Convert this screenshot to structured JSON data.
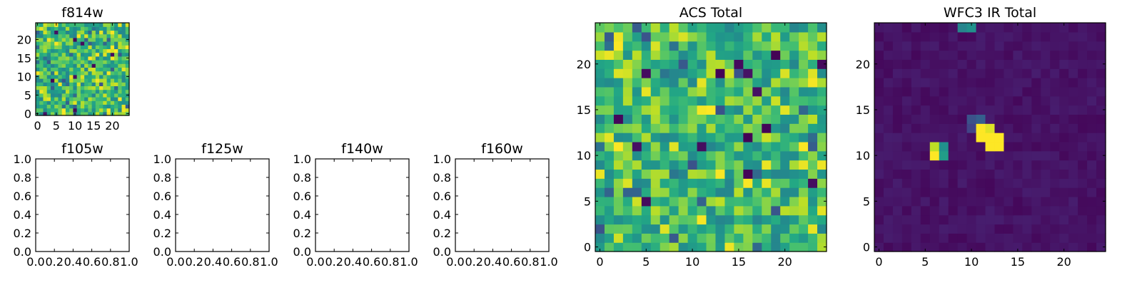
{
  "chart_data": [
    {
      "type": "heatmap",
      "title": "f814w",
      "xlabel": "",
      "ylabel": "",
      "xlim": [
        -0.5,
        24.5
      ],
      "ylim": [
        -0.5,
        24.5
      ],
      "xticks": [
        0,
        5,
        10,
        15,
        20
      ],
      "xtick_labels": [
        "0",
        "5",
        "10",
        "15",
        "20"
      ],
      "yticks": [
        0,
        5,
        10,
        15,
        20
      ],
      "ytick_labels": [
        "0",
        "5",
        "10",
        "15",
        "20"
      ],
      "colormap": "viridis",
      "grid": false,
      "cols": 25,
      "rows": 25,
      "pattern": "noise",
      "seed": 814
    },
    {
      "type": "empty",
      "title": "f105w",
      "xlim": [
        0,
        1
      ],
      "ylim": [
        0,
        1
      ],
      "xticks": [
        0,
        0.2,
        0.4,
        0.6,
        0.8,
        1.0
      ],
      "xtick_labels": [
        "0.0",
        "0.2",
        "0.4",
        "0.6",
        "0.8",
        "1.0"
      ],
      "yticks": [
        0,
        0.2,
        0.4,
        0.6,
        0.8,
        1.0
      ],
      "ytick_labels": [
        "0.0",
        "0.2",
        "0.4",
        "0.6",
        "0.8",
        "1.0"
      ]
    },
    {
      "type": "empty",
      "title": "f125w",
      "xlim": [
        0,
        1
      ],
      "ylim": [
        0,
        1
      ],
      "xticks": [
        0,
        0.2,
        0.4,
        0.6,
        0.8,
        1.0
      ],
      "xtick_labels": [
        "0.0",
        "0.2",
        "0.4",
        "0.6",
        "0.8",
        "1.0"
      ],
      "yticks": [
        0,
        0.2,
        0.4,
        0.6,
        0.8,
        1.0
      ],
      "ytick_labels": [
        "0.0",
        "0.2",
        "0.4",
        "0.6",
        "0.8",
        "1.0"
      ]
    },
    {
      "type": "empty",
      "title": "f140w",
      "xlim": [
        0,
        1
      ],
      "ylim": [
        0,
        1
      ],
      "xticks": [
        0,
        0.2,
        0.4,
        0.6,
        0.8,
        1.0
      ],
      "xtick_labels": [
        "0.0",
        "0.2",
        "0.4",
        "0.6",
        "0.8",
        "1.0"
      ],
      "yticks": [
        0,
        0.2,
        0.4,
        0.6,
        0.8,
        1.0
      ],
      "ytick_labels": [
        "0.0",
        "0.2",
        "0.4",
        "0.6",
        "0.8",
        "1.0"
      ]
    },
    {
      "type": "empty",
      "title": "f160w",
      "xlim": [
        0,
        1
      ],
      "ylim": [
        0,
        1
      ],
      "xticks": [
        0,
        0.2,
        0.4,
        0.6,
        0.8,
        1.0
      ],
      "xtick_labels": [
        "0.0",
        "0.2",
        "0.4",
        "0.6",
        "0.8",
        "1.0"
      ],
      "yticks": [
        0,
        0.2,
        0.4,
        0.6,
        0.8,
        1.0
      ],
      "ytick_labels": [
        "0.0",
        "0.2",
        "0.4",
        "0.6",
        "0.8",
        "1.0"
      ]
    },
    {
      "type": "heatmap",
      "title": "ACS Total",
      "xlim": [
        -0.5,
        24.5
      ],
      "ylim": [
        -0.5,
        24.5
      ],
      "xticks": [
        0,
        5,
        10,
        15,
        20
      ],
      "xtick_labels": [
        "0",
        "5",
        "10",
        "15",
        "20"
      ],
      "yticks": [
        0,
        5,
        10,
        15,
        20
      ],
      "ytick_labels": [
        "0",
        "5",
        "10",
        "15",
        "20"
      ],
      "colormap": "viridis",
      "grid": false,
      "cols": 25,
      "rows": 25,
      "pattern": "noise",
      "seed": 1337
    },
    {
      "type": "heatmap",
      "title": "WFC3 IR Total",
      "xlim": [
        -0.5,
        24.5
      ],
      "ylim": [
        -0.5,
        24.5
      ],
      "xticks": [
        0,
        5,
        10,
        15,
        20
      ],
      "xtick_labels": [
        "0",
        "5",
        "10",
        "15",
        "20"
      ],
      "yticks": [
        0,
        5,
        10,
        15,
        20
      ],
      "ytick_labels": [
        "0",
        "5",
        "10",
        "15",
        "20"
      ],
      "colormap": "viridis",
      "grid": false,
      "cols": 25,
      "rows": 25,
      "pattern": "background",
      "seed": 3,
      "background_level": [
        0.02,
        0.08
      ],
      "bright_pixels": [
        {
          "x": 6,
          "y": 10,
          "v": 1.0
        },
        {
          "x": 6,
          "y": 11,
          "v": 0.9
        },
        {
          "x": 7,
          "y": 10,
          "v": 0.55
        },
        {
          "x": 7,
          "y": 11,
          "v": 0.5
        },
        {
          "x": 11,
          "y": 12,
          "v": 1.0
        },
        {
          "x": 12,
          "y": 12,
          "v": 1.0
        },
        {
          "x": 11,
          "y": 13,
          "v": 1.0
        },
        {
          "x": 12,
          "y": 13,
          "v": 0.95
        },
        {
          "x": 12,
          "y": 11,
          "v": 1.0
        },
        {
          "x": 13,
          "y": 11,
          "v": 1.0
        },
        {
          "x": 13,
          "y": 12,
          "v": 1.0
        },
        {
          "x": 11,
          "y": 14,
          "v": 0.3
        },
        {
          "x": 10,
          "y": 14,
          "v": 0.25
        },
        {
          "x": 10,
          "y": 13,
          "v": 0.2
        },
        {
          "x": 9,
          "y": 24,
          "v": 0.45
        },
        {
          "x": 10,
          "y": 24,
          "v": 0.5
        }
      ]
    }
  ]
}
